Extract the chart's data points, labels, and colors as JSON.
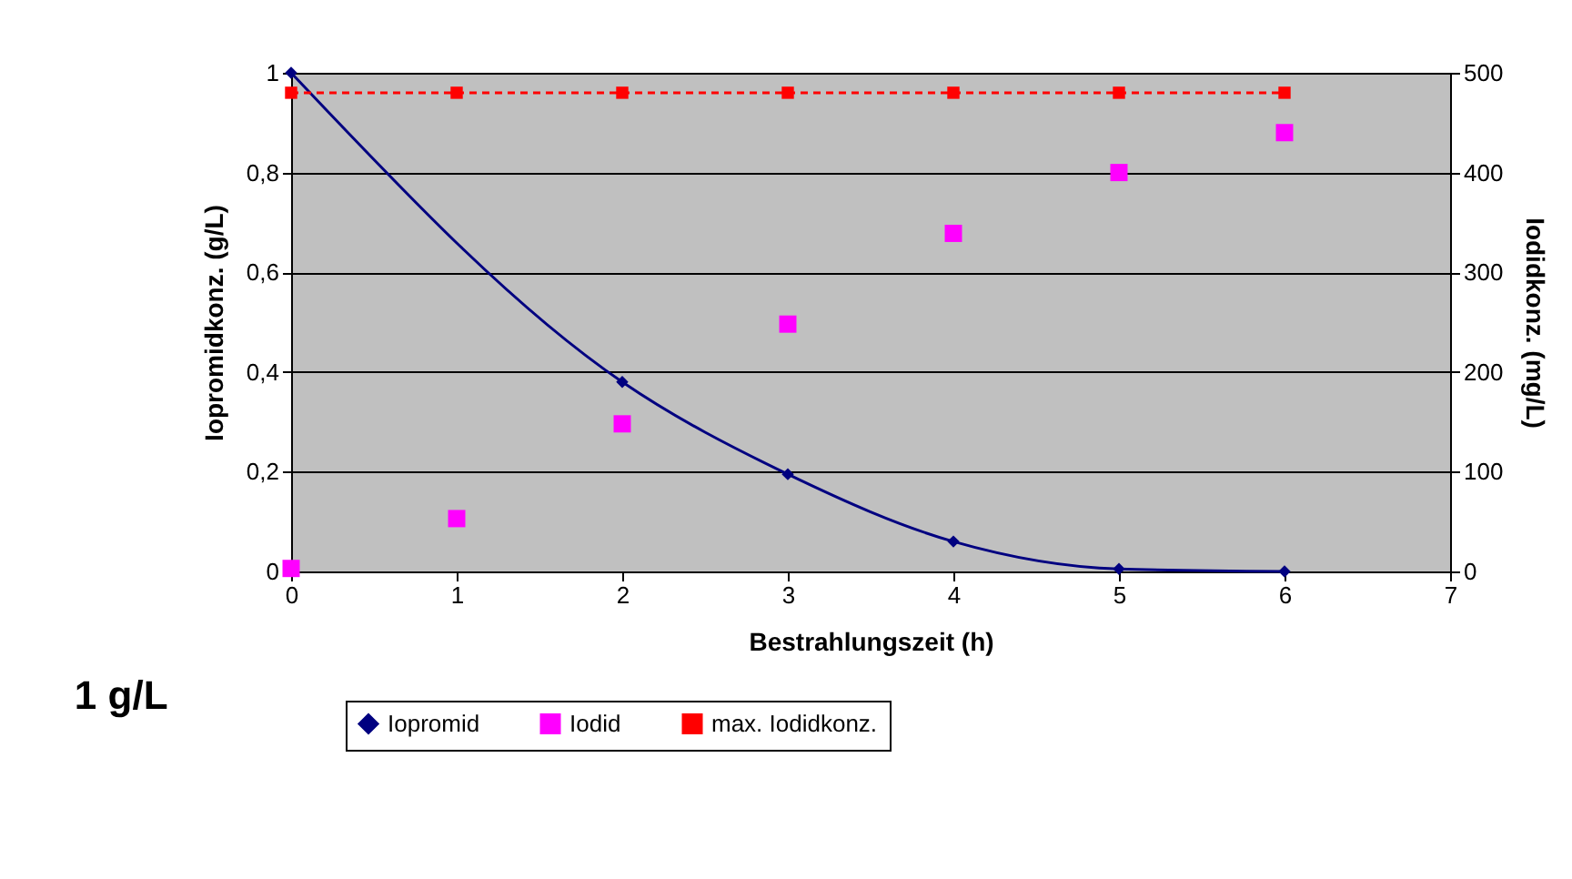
{
  "chart_data": {
    "type": "line",
    "xlabel": "Bestrahlungszeit (h)",
    "ylabel": "Iopromidkonz. (g/L)",
    "y2label": "Iodidkonz. (mg/L)",
    "annotations": [
      "1 g/L"
    ],
    "series": [
      {
        "name": "Iopromid",
        "color": "#000080",
        "marker": "diamond",
        "line_style": "solid",
        "x": [
          0,
          2,
          3,
          4,
          5,
          6
        ],
        "values": [
          1.0,
          0.38,
          0.195,
          0.06,
          0.005,
          0
        ]
      },
      {
        "name": "Iodid",
        "type": "scatter",
        "axis": "y2",
        "color": "#ff00ff",
        "marker": "square",
        "x": [
          0,
          1,
          2,
          3,
          4,
          5,
          6
        ],
        "values": [
          3,
          53,
          148,
          248,
          339,
          400,
          440
        ]
      },
      {
        "name": "max. Iodidkonz.",
        "type": "line",
        "axis": "y2",
        "color": "#ff0000",
        "marker": "square",
        "line_style": "dashed",
        "x": [
          0,
          1,
          2,
          3,
          4,
          5,
          6
        ],
        "values": [
          480,
          480,
          480,
          480,
          480,
          480,
          480
        ]
      }
    ],
    "xlim": [
      0,
      7
    ],
    "xticks": [
      0,
      1,
      2,
      3,
      4,
      5,
      6,
      7
    ],
    "ylim": [
      0,
      1
    ],
    "yticks": [
      0,
      {
        "value": 0.2,
        "label": "0,2"
      },
      {
        "value": 0.4,
        "label": "0,4"
      },
      {
        "value": 0.6,
        "label": "0,6"
      },
      {
        "value": 0.8,
        "label": "0,8"
      },
      1
    ],
    "y2lim": [
      0,
      500
    ],
    "y2ticks": [
      0,
      100,
      200,
      300,
      400,
      500
    ],
    "grid": "y",
    "legend": "bottom"
  }
}
